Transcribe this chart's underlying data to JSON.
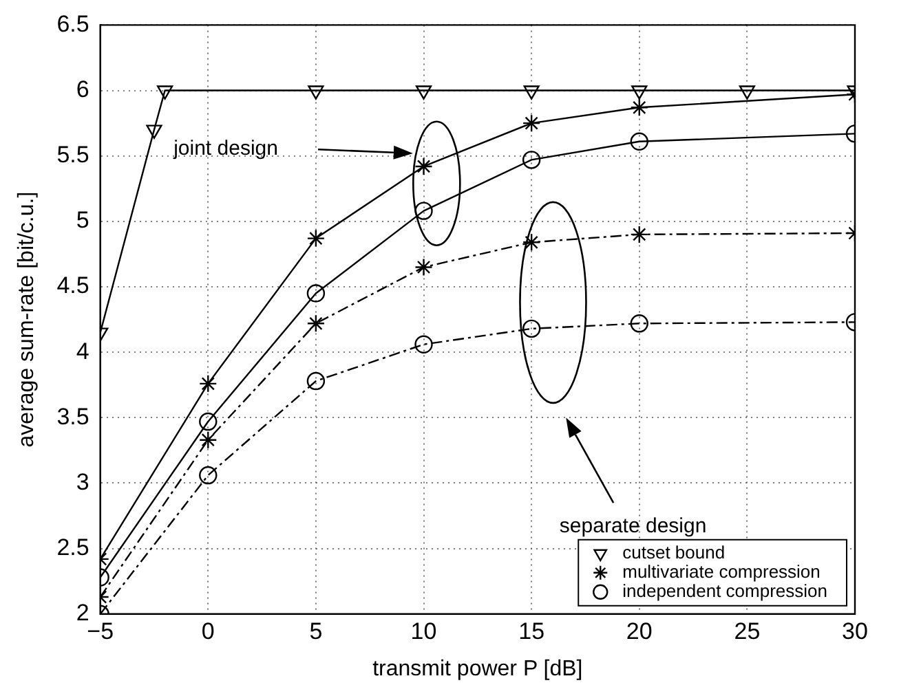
{
  "chart_data": {
    "type": "line",
    "xlabel": "transmit power P [dB]",
    "ylabel": "average sum-rate [bit/c.u.]",
    "xlim": [
      -5,
      30
    ],
    "xticks": [
      -5,
      0,
      5,
      10,
      15,
      20,
      25,
      30
    ],
    "ylim": [
      2,
      6.5
    ],
    "yticks": [
      2,
      2.5,
      3,
      3.5,
      4,
      4.5,
      5,
      5.5,
      6,
      6.5
    ],
    "grid": true,
    "legend": "bottom right",
    "series": [
      {
        "name": "cutset bound",
        "color": "#000000",
        "marker": "triangle",
        "line_style": "solid",
        "x": [
          -5,
          -2.5,
          -2,
          5,
          10,
          15,
          20,
          25,
          30
        ],
        "values": [
          4.15,
          5.7,
          6.0,
          6.0,
          6.0,
          6.0,
          6.0,
          6.0,
          6.0
        ]
      },
      {
        "name": "multivariate compression",
        "color": "#000000",
        "marker": "cross",
        "line_style": "solid",
        "x": [
          -5,
          0,
          5,
          10,
          15,
          20,
          30
        ],
        "values": [
          2.42,
          3.76,
          4.87,
          5.42,
          5.75,
          5.87,
          5.97
        ]
      },
      {
        "name": "independent compression",
        "color": "#000000",
        "marker": "circle",
        "line_style": "solid",
        "x": [
          -5,
          0,
          5,
          10,
          15,
          20,
          30
        ],
        "values": [
          2.28,
          3.47,
          4.45,
          5.08,
          5.47,
          5.61,
          5.67
        ]
      },
      {
        "color": "#000000",
        "marker": "cross",
        "line_style": "dashed",
        "x": [
          -5,
          0,
          5,
          10,
          15,
          20,
          30
        ],
        "values": [
          2.13,
          3.33,
          4.22,
          4.65,
          4.84,
          4.9,
          4.91
        ]
      },
      {
        "color": "#000000",
        "marker": "circle",
        "line_style": "dashed",
        "x": [
          -5,
          0,
          5,
          10,
          15,
          20,
          30
        ],
        "values": [
          2.0,
          3.06,
          3.78,
          4.06,
          4.18,
          4.22,
          4.23
        ]
      }
    ],
    "annotations": [
      "joint design",
      "separate design"
    ]
  }
}
